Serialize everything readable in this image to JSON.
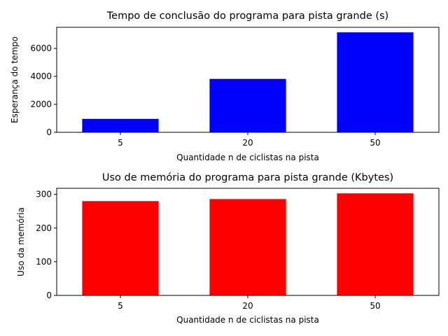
{
  "chart_data": [
    {
      "type": "bar",
      "title": "Tempo de conclusão do programa para pista grande (s)",
      "xlabel": "Quantidade n de ciclistas na pista",
      "ylabel": "Esperança do tempo",
      "categories": [
        "5",
        "20",
        "50"
      ],
      "values": [
        960,
        3820,
        7150
      ],
      "ylim": [
        0,
        7510
      ],
      "yticks": [
        0,
        2000,
        4000,
        6000
      ],
      "bar_color": "#0000ff",
      "grid": false
    },
    {
      "type": "bar",
      "title": "Uso de memória do programa para pista grande (Kbytes)",
      "xlabel": "Quantidade n de ciclistas na pista",
      "ylabel": "Uso da memória",
      "categories": [
        "5",
        "20",
        "50"
      ],
      "values": [
        280,
        286,
        303
      ],
      "ylim": [
        0,
        318
      ],
      "yticks": [
        0,
        100,
        200,
        300
      ],
      "bar_color": "#ff0000",
      "grid": false
    }
  ]
}
